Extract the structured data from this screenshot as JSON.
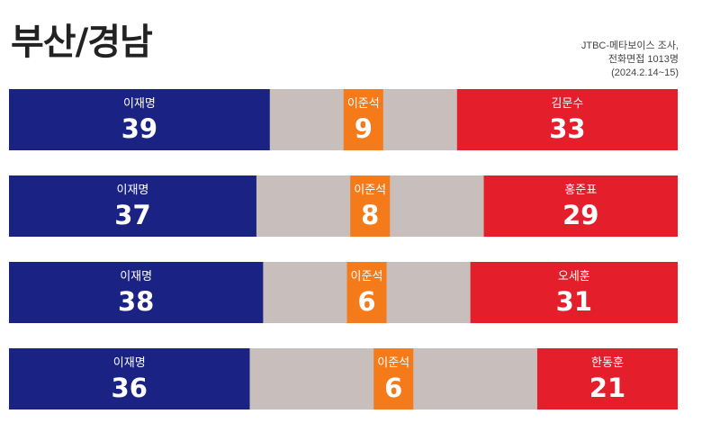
{
  "title": "부산/경남",
  "source": {
    "line1": "JTBC-메타보이스 조사,",
    "line2": "전화면접 1013명",
    "line3": "(2024.2.14~15)"
  },
  "colors": {
    "left": "#1a2384",
    "middle": "#f57a1a",
    "right": "#e41e2b",
    "undecided": "#c8bebb",
    "text": "#ffffff"
  },
  "chart_data": {
    "type": "bar",
    "stacked": true,
    "orientation": "horizontal",
    "unit": "%",
    "rows": [
      {
        "segments": [
          {
            "name": "이재명",
            "value": 39
          },
          {
            "name": "이준석",
            "value": 9
          },
          {
            "name": "김문수",
            "value": 33
          }
        ]
      },
      {
        "segments": [
          {
            "name": "이재명",
            "value": 37
          },
          {
            "name": "이준석",
            "value": 8
          },
          {
            "name": "홍준표",
            "value": 29
          }
        ]
      },
      {
        "segments": [
          {
            "name": "이재명",
            "value": 38
          },
          {
            "name": "이준석",
            "value": 6
          },
          {
            "name": "오세훈",
            "value": 31
          }
        ]
      },
      {
        "segments": [
          {
            "name": "이재명",
            "value": 36
          },
          {
            "name": "이준석",
            "value": 6
          },
          {
            "name": "한동훈",
            "value": 21
          }
        ]
      }
    ]
  }
}
